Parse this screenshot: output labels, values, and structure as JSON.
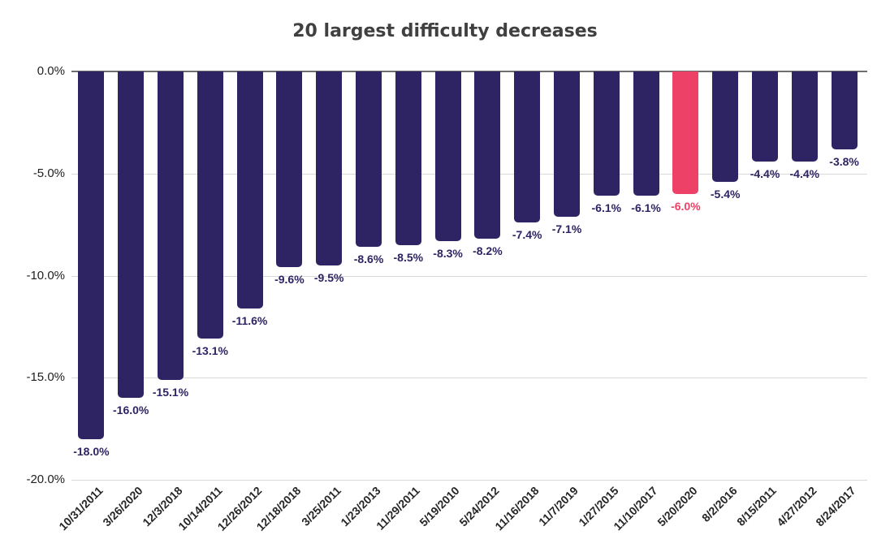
{
  "page": {
    "background": "#ffffff"
  },
  "chart_data": {
    "type": "bar",
    "title": "20 largest difficulty decreases",
    "xlabel": "",
    "ylabel": "",
    "categories": [
      "10/31/2011",
      "3/26/2020",
      "12/3/2018",
      "10/14/2011",
      "12/26/2012",
      "12/18/2018",
      "3/25/2011",
      "1/23/2013",
      "11/29/2011",
      "5/19/2010",
      "5/24/2012",
      "11/16/2018",
      "11/7/2019",
      "1/27/2015",
      "11/10/2017",
      "5/20/2020",
      "8/2/2016",
      "8/15/2011",
      "4/27/2012",
      "8/24/2017"
    ],
    "values": [
      -18.0,
      -16.0,
      -15.1,
      -13.1,
      -11.6,
      -9.6,
      -9.5,
      -8.6,
      -8.5,
      -8.3,
      -8.2,
      -7.4,
      -7.1,
      -6.1,
      -6.1,
      -6.0,
      -5.4,
      -4.4,
      -4.4,
      -3.8
    ],
    "value_labels": [
      "-18.0%",
      "-16.0%",
      "-15.1%",
      "-13.1%",
      "-11.6%",
      "-9.6%",
      "-9.5%",
      "-8.6%",
      "-8.5%",
      "-8.3%",
      "-8.2%",
      "-7.4%",
      "-7.1%",
      "-6.1%",
      "-6.1%",
      "-6.0%",
      "-5.4%",
      "-4.4%",
      "-4.4%",
      "-3.8%"
    ],
    "highlight": {
      "index": 15,
      "category": "5/20/2020",
      "value": -6.0,
      "label": "-6.0%"
    },
    "y_axis": {
      "tick_labels": [
        "0.0%",
        "-5.0%",
        "-10.0%",
        "-15.0%",
        "-20.0%"
      ],
      "tick_values": [
        0,
        -5,
        -10,
        -15,
        -20
      ],
      "ylim": [
        -20,
        0
      ]
    },
    "grid": "horizontal",
    "legend": "none",
    "colors": {
      "bar": "#2e2464",
      "highlight_bar": "#ee4168",
      "value_label": "#2e2464",
      "highlight_value_label": "#ee4168",
      "title": "#404040",
      "axis_text": "#1f1f1f",
      "gridline": "#d9d9d9",
      "zero_line": "#6e6e6e"
    }
  }
}
